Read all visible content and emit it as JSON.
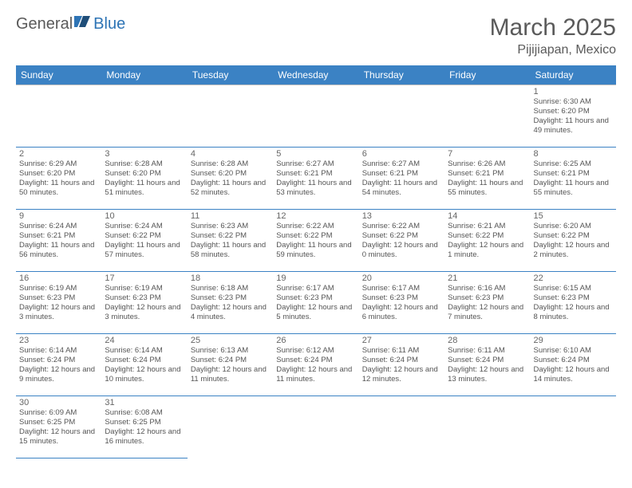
{
  "logo": {
    "text1": "General",
    "text2": "Blue"
  },
  "title": "March 2025",
  "location": "Pijijiapan, Mexico",
  "colors": {
    "header_bg": "#3b82c4",
    "header_text": "#ffffff",
    "row_divider": "#3b82c4",
    "cell_border": "#bfbfbf",
    "title_color": "#5a5a5a"
  },
  "day_headers": [
    "Sunday",
    "Monday",
    "Tuesday",
    "Wednesday",
    "Thursday",
    "Friday",
    "Saturday"
  ],
  "weeks": [
    [
      null,
      null,
      null,
      null,
      null,
      null,
      {
        "n": "1",
        "sunrise": "6:30 AM",
        "sunset": "6:20 PM",
        "daylight": "11 hours and 49 minutes."
      }
    ],
    [
      {
        "n": "2",
        "sunrise": "6:29 AM",
        "sunset": "6:20 PM",
        "daylight": "11 hours and 50 minutes."
      },
      {
        "n": "3",
        "sunrise": "6:28 AM",
        "sunset": "6:20 PM",
        "daylight": "11 hours and 51 minutes."
      },
      {
        "n": "4",
        "sunrise": "6:28 AM",
        "sunset": "6:20 PM",
        "daylight": "11 hours and 52 minutes."
      },
      {
        "n": "5",
        "sunrise": "6:27 AM",
        "sunset": "6:21 PM",
        "daylight": "11 hours and 53 minutes."
      },
      {
        "n": "6",
        "sunrise": "6:27 AM",
        "sunset": "6:21 PM",
        "daylight": "11 hours and 54 minutes."
      },
      {
        "n": "7",
        "sunrise": "6:26 AM",
        "sunset": "6:21 PM",
        "daylight": "11 hours and 55 minutes."
      },
      {
        "n": "8",
        "sunrise": "6:25 AM",
        "sunset": "6:21 PM",
        "daylight": "11 hours and 55 minutes."
      }
    ],
    [
      {
        "n": "9",
        "sunrise": "6:24 AM",
        "sunset": "6:21 PM",
        "daylight": "11 hours and 56 minutes."
      },
      {
        "n": "10",
        "sunrise": "6:24 AM",
        "sunset": "6:22 PM",
        "daylight": "11 hours and 57 minutes."
      },
      {
        "n": "11",
        "sunrise": "6:23 AM",
        "sunset": "6:22 PM",
        "daylight": "11 hours and 58 minutes."
      },
      {
        "n": "12",
        "sunrise": "6:22 AM",
        "sunset": "6:22 PM",
        "daylight": "11 hours and 59 minutes."
      },
      {
        "n": "13",
        "sunrise": "6:22 AM",
        "sunset": "6:22 PM",
        "daylight": "12 hours and 0 minutes."
      },
      {
        "n": "14",
        "sunrise": "6:21 AM",
        "sunset": "6:22 PM",
        "daylight": "12 hours and 1 minute."
      },
      {
        "n": "15",
        "sunrise": "6:20 AM",
        "sunset": "6:22 PM",
        "daylight": "12 hours and 2 minutes."
      }
    ],
    [
      {
        "n": "16",
        "sunrise": "6:19 AM",
        "sunset": "6:23 PM",
        "daylight": "12 hours and 3 minutes."
      },
      {
        "n": "17",
        "sunrise": "6:19 AM",
        "sunset": "6:23 PM",
        "daylight": "12 hours and 3 minutes."
      },
      {
        "n": "18",
        "sunrise": "6:18 AM",
        "sunset": "6:23 PM",
        "daylight": "12 hours and 4 minutes."
      },
      {
        "n": "19",
        "sunrise": "6:17 AM",
        "sunset": "6:23 PM",
        "daylight": "12 hours and 5 minutes."
      },
      {
        "n": "20",
        "sunrise": "6:17 AM",
        "sunset": "6:23 PM",
        "daylight": "12 hours and 6 minutes."
      },
      {
        "n": "21",
        "sunrise": "6:16 AM",
        "sunset": "6:23 PM",
        "daylight": "12 hours and 7 minutes."
      },
      {
        "n": "22",
        "sunrise": "6:15 AM",
        "sunset": "6:23 PM",
        "daylight": "12 hours and 8 minutes."
      }
    ],
    [
      {
        "n": "23",
        "sunrise": "6:14 AM",
        "sunset": "6:24 PM",
        "daylight": "12 hours and 9 minutes."
      },
      {
        "n": "24",
        "sunrise": "6:14 AM",
        "sunset": "6:24 PM",
        "daylight": "12 hours and 10 minutes."
      },
      {
        "n": "25",
        "sunrise": "6:13 AM",
        "sunset": "6:24 PM",
        "daylight": "12 hours and 11 minutes."
      },
      {
        "n": "26",
        "sunrise": "6:12 AM",
        "sunset": "6:24 PM",
        "daylight": "12 hours and 11 minutes."
      },
      {
        "n": "27",
        "sunrise": "6:11 AM",
        "sunset": "6:24 PM",
        "daylight": "12 hours and 12 minutes."
      },
      {
        "n": "28",
        "sunrise": "6:11 AM",
        "sunset": "6:24 PM",
        "daylight": "12 hours and 13 minutes."
      },
      {
        "n": "29",
        "sunrise": "6:10 AM",
        "sunset": "6:24 PM",
        "daylight": "12 hours and 14 minutes."
      }
    ],
    [
      {
        "n": "30",
        "sunrise": "6:09 AM",
        "sunset": "6:25 PM",
        "daylight": "12 hours and 15 minutes."
      },
      {
        "n": "31",
        "sunrise": "6:08 AM",
        "sunset": "6:25 PM",
        "daylight": "12 hours and 16 minutes."
      },
      null,
      null,
      null,
      null,
      null
    ]
  ],
  "labels": {
    "sunrise": "Sunrise:",
    "sunset": "Sunset:",
    "daylight": "Daylight:"
  }
}
